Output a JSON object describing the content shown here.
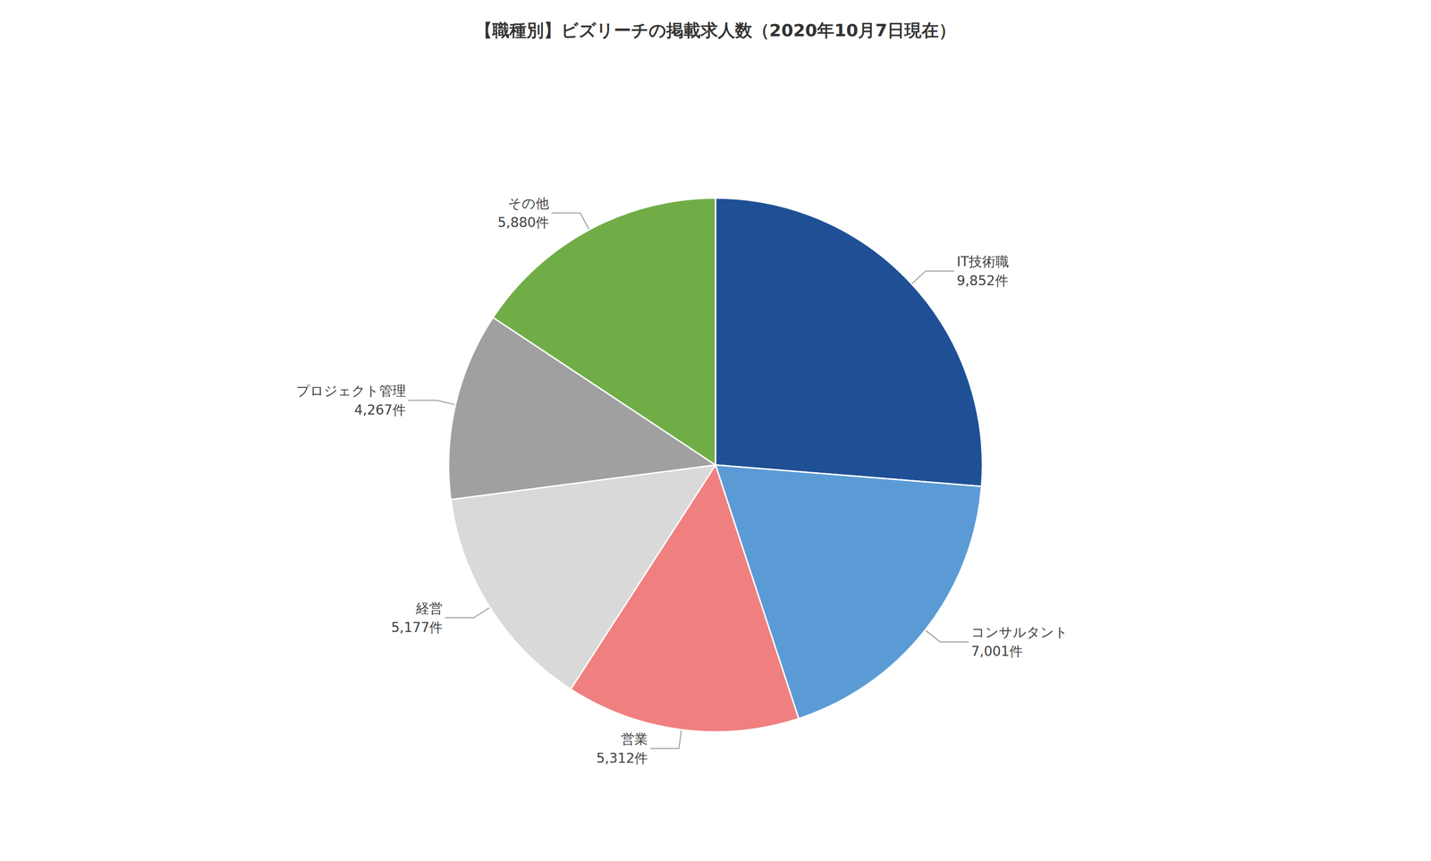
{
  "chart_data": {
    "type": "pie",
    "title": "【職種別】ビズリーチの掲載求人数（2020年10月7日現在）",
    "categories": [
      "IT技術職",
      "コンサルタント",
      "営業",
      "経営",
      "プロジェクト管理",
      "その他"
    ],
    "values": [
      9852,
      7001,
      5312,
      5177,
      4267,
      5880
    ],
    "value_labels": [
      "9,852件",
      "7,001件",
      "5,312件",
      "5,177件",
      "4,267件",
      "5,880件"
    ],
    "colors": [
      "#1f5096",
      "#5b9bd5",
      "#f08080",
      "#d9d9d9",
      "#a0a0a0",
      "#70ad47"
    ],
    "data_labels": true
  }
}
